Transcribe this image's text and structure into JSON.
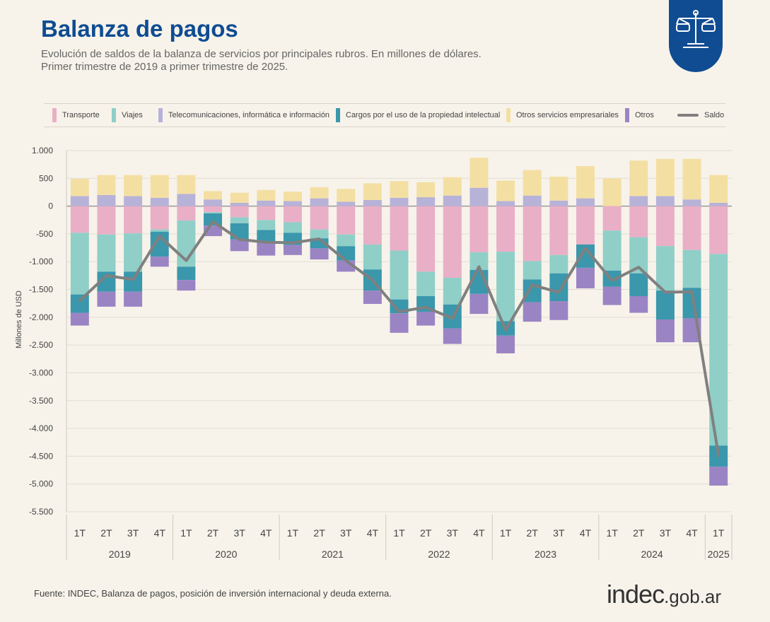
{
  "header": {
    "title": "Balanza de pagos",
    "subtitle_line1": "Evolución de saldos de la balanza de servicios por principales rubros. En millones de dólares.",
    "subtitle_line2": "Primer trimestre de 2019 a primer trimestre de 2025."
  },
  "footer": {
    "source": "Fuente: INDEC, Balanza de pagos, posición de inversión internacional y deuda externa.",
    "logo_main": "indec",
    "logo_domain": ".gob.ar"
  },
  "colors": {
    "transporte": "#e9afc6",
    "viajes": "#8fcfc8",
    "telecom": "#b7b2d8",
    "cargos": "#3a97ac",
    "otros_servicios": "#f4dfa3",
    "otros": "#9b84c4",
    "saldo": "#808080",
    "title": "#0f4c92"
  },
  "chart_data": {
    "type": "bar",
    "stacked": true,
    "title": "Balanza de pagos",
    "ylabel": "Millones de USD",
    "xlabel": "",
    "ylim": [
      -5500,
      1000
    ],
    "yticks": [
      1000,
      500,
      0,
      -500,
      -1000,
      -1500,
      -2000,
      -2500,
      -3000,
      -3500,
      -4000,
      -4500,
      -5000,
      -5500
    ],
    "ytick_labels": [
      "1.000",
      "500",
      "0",
      "-500",
      "-1.000",
      "-1.500",
      "-2.000",
      "-2.500",
      "-3.000",
      "-3.500",
      "-4.000",
      "-4.500",
      "-5.000",
      "-5.500"
    ],
    "legend_position": "top",
    "categories": [
      "1T",
      "2T",
      "3T",
      "4T",
      "1T",
      "2T",
      "3T",
      "4T",
      "1T",
      "2T",
      "3T",
      "4T",
      "1T",
      "2T",
      "3T",
      "4T",
      "1T",
      "2T",
      "3T",
      "4T",
      "1T",
      "2T",
      "3T",
      "4T",
      "1T"
    ],
    "year_groups": [
      {
        "label": "2019",
        "count": 4
      },
      {
        "label": "2020",
        "count": 4
      },
      {
        "label": "2021",
        "count": 4
      },
      {
        "label": "2022",
        "count": 4
      },
      {
        "label": "2023",
        "count": 4
      },
      {
        "label": "2024",
        "count": 4
      },
      {
        "label": "2025",
        "count": 1
      }
    ],
    "series": [
      {
        "name": "Transporte",
        "color_key": "transporte",
        "values": [
          -480,
          -510,
          -490,
          -420,
          -260,
          -110,
          -200,
          -250,
          -290,
          -420,
          -510,
          -690,
          -800,
          -1180,
          -1290,
          -830,
          -820,
          -990,
          -880,
          -690,
          -440,
          -560,
          -720,
          -790,
          -860
        ]
      },
      {
        "name": "Viajes",
        "color_key": "viajes",
        "values": [
          -1110,
          -670,
          -690,
          -40,
          -830,
          -20,
          -110,
          -180,
          -190,
          -160,
          -210,
          -450,
          -880,
          -440,
          -480,
          -320,
          -1250,
          -330,
          -330,
          0,
          -720,
          -650,
          -800,
          -680,
          -3450
        ]
      },
      {
        "name": "Telecomunicaciones,  informática e información",
        "color_key": "telecom",
        "values": [
          180,
          200,
          180,
          150,
          220,
          120,
          60,
          100,
          90,
          140,
          80,
          110,
          150,
          160,
          190,
          330,
          90,
          190,
          100,
          140,
          0,
          180,
          180,
          120,
          60
        ]
      },
      {
        "name": "Cargos por el uso de la propiedad intelectual",
        "color_key": "cargos",
        "values": [
          -330,
          -360,
          -360,
          -450,
          -240,
          -220,
          -290,
          -220,
          -220,
          -180,
          -260,
          -380,
          -250,
          -280,
          -430,
          -430,
          -260,
          -410,
          -500,
          -420,
          -290,
          -410,
          -520,
          -550,
          -380
        ]
      },
      {
        "name": "Otros servicios empresariales",
        "color_key": "otros_servicios",
        "values": [
          310,
          360,
          380,
          410,
          340,
          150,
          180,
          190,
          170,
          200,
          230,
          300,
          300,
          270,
          330,
          540,
          370,
          460,
          430,
          580,
          500,
          640,
          670,
          730,
          500
        ]
      },
      {
        "name": "Otros",
        "color_key": "otros",
        "values": [
          -230,
          -270,
          -270,
          -180,
          -190,
          -190,
          -210,
          -240,
          -180,
          -200,
          -200,
          -240,
          -350,
          -250,
          -280,
          -360,
          -320,
          -350,
          -340,
          -370,
          -330,
          -300,
          -410,
          -430,
          -340
        ]
      }
    ],
    "line_series": {
      "name": "Saldo",
      "color_key": "saldo",
      "values": [
        -1700,
        -1250,
        -1320,
        -540,
        -980,
        -280,
        -600,
        -650,
        -660,
        -590,
        -980,
        -1330,
        -1900,
        -1820,
        -2020,
        -1090,
        -2230,
        -1420,
        -1550,
        -760,
        -1340,
        -1100,
        -1550,
        -1540,
        -4490
      ]
    }
  }
}
